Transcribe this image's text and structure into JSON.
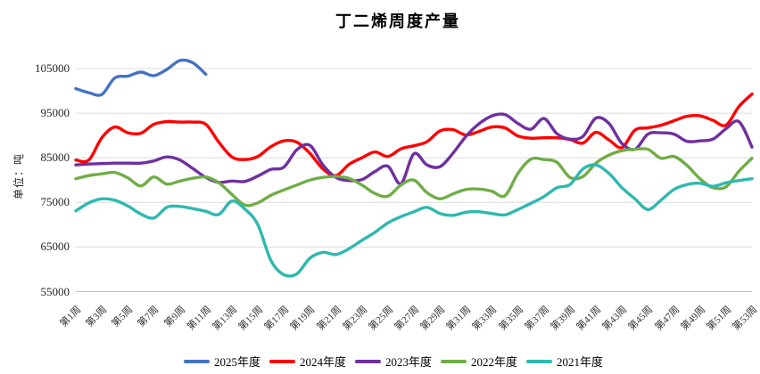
{
  "title": "丁二烯周度产量",
  "y_axis": {
    "title": "单位：吨",
    "tick_labels": [
      "55000",
      "65000",
      "75000",
      "85000",
      "95000",
      "105000"
    ],
    "min": 55000,
    "max": 105000
  },
  "x_axis": {
    "tick_labels": [
      "第1周",
      "第3周",
      "第5周",
      "第7周",
      "第9周",
      "第11周",
      "第13周",
      "第15周",
      "第17周",
      "第19周",
      "第21周",
      "第23周",
      "第25周",
      "第27周",
      "第29周",
      "第31周",
      "第33周",
      "第35周",
      "第37周",
      "第39周",
      "第41周",
      "第43周",
      "第45周",
      "第47周",
      "第49周",
      "第51周",
      "第53周"
    ],
    "weeks_total": 53
  },
  "chart_data": {
    "type": "line",
    "title": "丁二烯周度产量",
    "ylabel": "单位：吨",
    "ylim": [
      55000,
      105000
    ],
    "grid": "horizontal",
    "legend_position": "bottom",
    "x": [
      1,
      2,
      3,
      4,
      5,
      6,
      7,
      8,
      9,
      10,
      11,
      12,
      13,
      14,
      15,
      16,
      17,
      18,
      19,
      20,
      21,
      22,
      23,
      24,
      25,
      26,
      27,
      28,
      29,
      30,
      31,
      32,
      33,
      34,
      35,
      36,
      37,
      38,
      39,
      40,
      41,
      42,
      43,
      44,
      45,
      46,
      47,
      48,
      49,
      50,
      51,
      52,
      53
    ],
    "series": [
      {
        "name": "2025年度",
        "color": "#4472C4",
        "values": [
          100500,
          99600,
          99200,
          102900,
          103300,
          104200,
          103400,
          104800,
          106800,
          106300,
          103700
        ]
      },
      {
        "name": "2024年度",
        "color": "#FF0000",
        "values": [
          84500,
          84500,
          89500,
          91900,
          90600,
          90500,
          92500,
          93100,
          93000,
          93000,
          92500,
          88500,
          85200,
          84600,
          85300,
          87500,
          88800,
          88500,
          86000,
          82500,
          81000,
          83500,
          85000,
          86300,
          85300,
          87000,
          87700,
          88600,
          91000,
          91300,
          90100,
          90900,
          91900,
          91700,
          89900,
          89400,
          89500,
          89500,
          89100,
          88300,
          90700,
          89000,
          87300,
          91200,
          91700,
          92300,
          93300,
          94300,
          94400,
          93400,
          92300,
          96500,
          99300
        ]
      },
      {
        "name": "2023年度",
        "color": "#7030A0",
        "values": [
          83400,
          83600,
          83700,
          83800,
          83800,
          83800,
          84300,
          85200,
          84500,
          82600,
          80600,
          79500,
          79800,
          79700,
          80900,
          82400,
          82900,
          86800,
          87800,
          83400,
          80600,
          79900,
          80100,
          81900,
          83100,
          79200,
          85900,
          83400,
          83000,
          86000,
          89800,
          92600,
          94400,
          94700,
          92700,
          91400,
          93800,
          90400,
          89200,
          89800,
          93900,
          92700,
          88200,
          86900,
          90300,
          90600,
          90300,
          88700,
          88800,
          89200,
          91500,
          93100,
          87400
        ]
      },
      {
        "name": "2022年度",
        "color": "#70AD47",
        "values": [
          80300,
          81000,
          81400,
          81700,
          80500,
          78700,
          80700,
          79100,
          79800,
          80400,
          80700,
          79400,
          76800,
          74400,
          74900,
          76600,
          77800,
          78900,
          80000,
          80600,
          80800,
          80400,
          78900,
          77000,
          76400,
          78900,
          80000,
          77200,
          75800,
          76900,
          77900,
          78000,
          77500,
          76500,
          81500,
          84700,
          84600,
          84000,
          80600,
          80800,
          83800,
          85600,
          86600,
          86900,
          86900,
          84900,
          85300,
          83300,
          80300,
          78300,
          78500,
          82000,
          84900
        ]
      },
      {
        "name": "2021年度",
        "color": "#2FB8B0",
        "values": [
          73100,
          74900,
          75800,
          75500,
          74200,
          72400,
          71500,
          73900,
          74100,
          73600,
          73000,
          72300,
          75300,
          73500,
          70000,
          62000,
          58800,
          59000,
          62500,
          63800,
          63300,
          64600,
          66500,
          68300,
          70400,
          71800,
          72900,
          73900,
          72500,
          72100,
          72800,
          72900,
          72500,
          72200,
          73400,
          74800,
          76300,
          78300,
          79000,
          82500,
          83400,
          81500,
          78300,
          75800,
          73400,
          75500,
          77900,
          79000,
          79300,
          78600,
          79400,
          79900,
          80300
        ]
      }
    ]
  }
}
